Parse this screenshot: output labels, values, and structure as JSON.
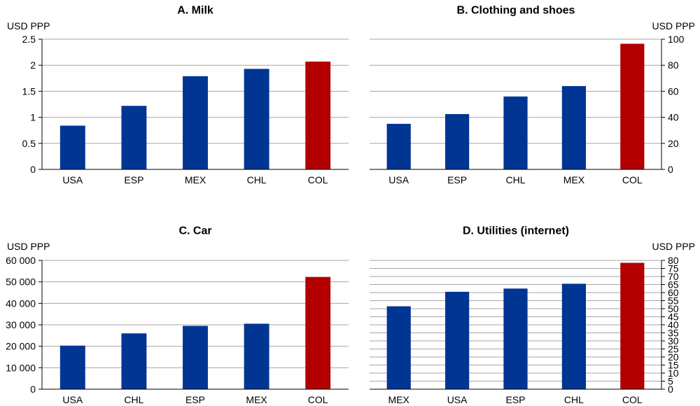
{
  "chart_data": [
    {
      "type": "bar",
      "title": "A. Milk",
      "unit_label": "USD PPP",
      "axis_side": "left",
      "categories": [
        "USA",
        "ESP",
        "MEX",
        "CHL",
        "COL"
      ],
      "values": [
        0.84,
        1.22,
        1.79,
        1.93,
        2.07
      ],
      "ylim": [
        0,
        2.5
      ],
      "yticks": [
        0,
        0.5,
        1,
        1.5,
        2,
        2.5
      ],
      "ytick_labels": [
        "0",
        "0.5",
        "1",
        "1.5",
        "2",
        "2.5"
      ],
      "grid": true
    },
    {
      "type": "bar",
      "title": "B. Clothing and shoes",
      "unit_label": "USD PPP",
      "axis_side": "right",
      "categories": [
        "USA",
        "ESP",
        "CHL",
        "MEX",
        "COL"
      ],
      "values": [
        35,
        42.5,
        56,
        64,
        96.5
      ],
      "ylim": [
        0,
        100
      ],
      "yticks": [
        0,
        20,
        40,
        60,
        80,
        100
      ],
      "ytick_labels": [
        "0",
        "20",
        "40",
        "60",
        "80",
        "100"
      ],
      "grid": true
    },
    {
      "type": "bar",
      "title": "C. Car",
      "unit_label": "USD PPP",
      "axis_side": "left",
      "categories": [
        "USA",
        "CHL",
        "ESP",
        "MEX",
        "COL"
      ],
      "values": [
        20300,
        26000,
        29500,
        30500,
        52300
      ],
      "ylim": [
        0,
        60000
      ],
      "yticks": [
        0,
        10000,
        20000,
        30000,
        40000,
        50000,
        60000
      ],
      "ytick_labels": [
        "0",
        "10 000",
        "20 000",
        "30 000",
        "40 000",
        "50 000",
        "60 000"
      ],
      "grid": true
    },
    {
      "type": "bar",
      "title": "D. Utilities (internet)",
      "unit_label": "USD PPP",
      "axis_side": "right",
      "categories": [
        "MEX",
        "USA",
        "ESP",
        "CHL",
        "COL"
      ],
      "values": [
        51.5,
        60.5,
        62.5,
        65.5,
        78.5
      ],
      "ylim": [
        0,
        80
      ],
      "yticks": [
        0,
        5,
        10,
        15,
        20,
        25,
        30,
        35,
        40,
        45,
        50,
        55,
        60,
        65,
        70,
        75,
        80
      ],
      "ytick_labels": [
        "0",
        "5",
        "10",
        "15",
        "20",
        "25",
        "30",
        "35",
        "40",
        "45",
        "50",
        "55",
        "60",
        "65",
        "70",
        "75",
        "80"
      ],
      "grid": true
    }
  ],
  "colors": {
    "bar": "#003594",
    "highlight_bar": "#b20000",
    "highlight_category": "COL",
    "grid": "#a6a6a6",
    "axis": "#000000"
  }
}
